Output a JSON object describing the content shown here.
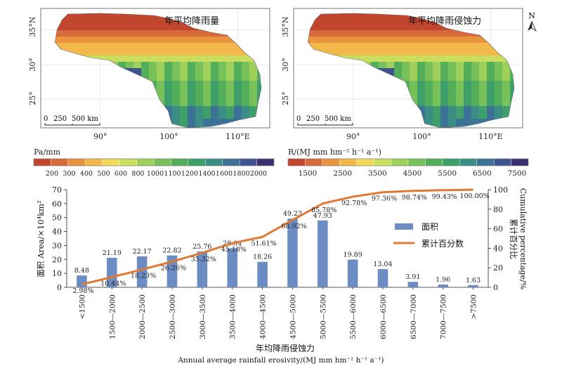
{
  "maps": {
    "left": {
      "title": "年平均降雨量",
      "lat_labels": [
        "35°N",
        "30°",
        "25°"
      ],
      "lon_labels": [
        "90°",
        "100°",
        "110°E"
      ],
      "scale_bar": [
        "0",
        "250",
        "500 km"
      ]
    },
    "right": {
      "title": "年平均降雨侵蚀力",
      "lat_labels": [
        "35°N",
        "30°",
        "25°"
      ],
      "lon_labels": [
        "90°",
        "100°",
        "110°E"
      ],
      "scale_bar": [
        "0",
        "250",
        "500 km"
      ]
    },
    "north_arrow": "N"
  },
  "legends": {
    "left": {
      "unit": "Pa/mm",
      "ticks": [
        "200",
        "300",
        "400",
        "500",
        "600",
        "800",
        "1000",
        "1100",
        "1200",
        "1400",
        "1600",
        "1800",
        "2000"
      ]
    },
    "right": {
      "unit": "R/(MJ mm hm⁻² h⁻¹ a⁻¹)",
      "ticks": [
        "1500",
        "2500",
        "3500",
        "4500",
        "5500",
        "6500",
        "7500"
      ]
    },
    "colors": [
      "#c2452d",
      "#d76a3b",
      "#e9933f",
      "#f3b84a",
      "#f2da5a",
      "#c9dd5e",
      "#9fd05c",
      "#77c05a",
      "#52ae58",
      "#3e9f6a",
      "#3b8e86",
      "#3c7296",
      "#3f5290",
      "#3a2f6e"
    ]
  },
  "chart_data": {
    "type": "bar",
    "categories": [
      "<1500",
      "1500—2000",
      "2000—2500",
      "2500—3000",
      "3000—3500",
      "3500—4000",
      "4000—4500",
      "4500—5000",
      "5000—5500",
      "5500—6000",
      "6000—6500",
      "6500—7000",
      "7000—7500",
      ">7500"
    ],
    "series": [
      {
        "name": "面积",
        "type": "bar",
        "axis": "left",
        "color": "#6b8dc4",
        "values": [
          8.48,
          21.19,
          22.17,
          22.82,
          25.76,
          28.04,
          18.26,
          49.23,
          47.93,
          19.89,
          13.04,
          3.91,
          1.96,
          1.63
        ],
        "labels": [
          "8.48",
          "21.19",
          "22.17",
          "22.82",
          "25.76",
          "28.04",
          "18.26",
          "49.23",
          "47.93",
          "19.89",
          "13.04",
          "3.91",
          "1.96",
          "1.63"
        ]
      },
      {
        "name": "累计百分数",
        "type": "line",
        "axis": "right",
        "color": "#e07a33",
        "values": [
          2.98,
          10.44,
          18.23,
          26.26,
          35.32,
          45.18,
          51.61,
          68.92,
          85.78,
          92.78,
          97.36,
          98.74,
          99.43,
          100.0
        ],
        "labels": [
          "2.98%",
          "10.44%",
          "18.23%",
          "26.26%",
          "35.32%",
          "45.18%",
          "51.61%",
          "68.92%",
          "85.78%",
          "92.78%",
          "97.36%",
          "98.74%",
          "99.43%",
          "100.00%"
        ]
      }
    ],
    "y_left": {
      "label_cn": "面积 Area/×10⁴km²",
      "ticks": [
        "0",
        "10",
        "20",
        "30",
        "40",
        "50",
        "60",
        "70"
      ],
      "range": [
        0,
        70
      ]
    },
    "y_right": {
      "label_cn": "累计百分比",
      "label_en": "Cumulative percentage/%",
      "ticks": [
        "0",
        "20",
        "40",
        "60",
        "80",
        "100"
      ],
      "range": [
        0,
        100
      ]
    },
    "xlabel_cn": "年均降雨侵蚀力",
    "xlabel_en": "Annual average rainfall erosivity/(MJ mm hm⁻² h⁻¹ a⁻¹)",
    "legend": {
      "position": "right-middle",
      "entries": [
        "面积",
        "累计百分数"
      ]
    },
    "grid": false
  }
}
